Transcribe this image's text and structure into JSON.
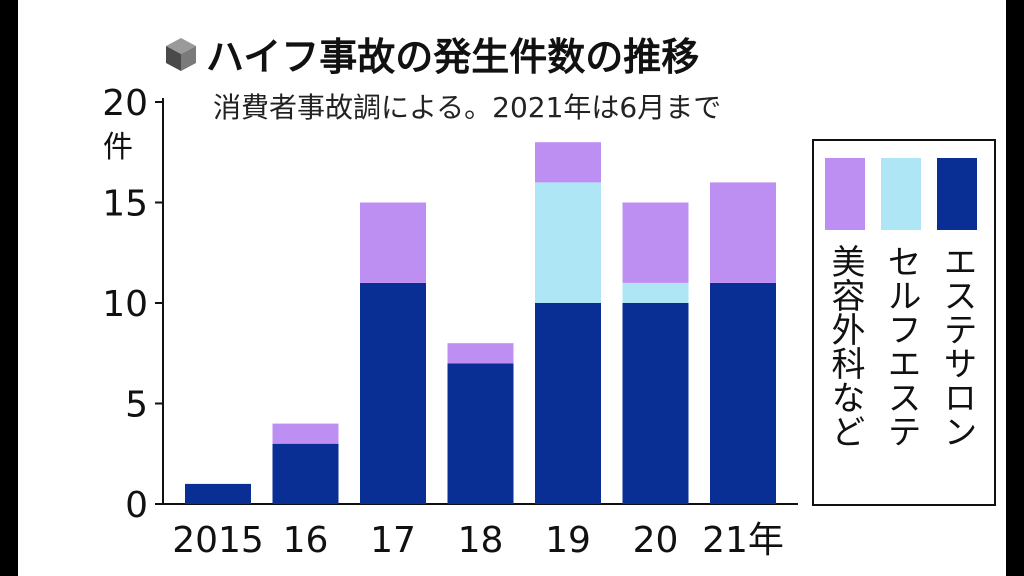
{
  "chart_data": {
    "type": "bar",
    "stacked": true,
    "title": "ハイフ事故の発生件数の推移",
    "subtitle": "消費者事故調による。2021年は6月まで",
    "ylabel": "件",
    "ylim": [
      0,
      20
    ],
    "yticks": [
      "0",
      "5",
      "10",
      "15",
      "20"
    ],
    "categories": [
      "2015",
      "16",
      "17",
      "18",
      "19",
      "20",
      "21年"
    ],
    "series": [
      {
        "name": "エステサロン",
        "color": "#0a2f94",
        "values": [
          1,
          3,
          11,
          7,
          10,
          10,
          11
        ]
      },
      {
        "name": "セルフエステ",
        "color": "#aee6f5",
        "values": [
          0,
          0,
          0,
          0,
          6,
          1,
          0
        ]
      },
      {
        "name": "美容外科など",
        "color": "#bd8ff3",
        "values": [
          0,
          1,
          4,
          1,
          2,
          4,
          5
        ]
      }
    ],
    "legend_position": "right",
    "grid": false
  },
  "colors": {
    "title_icon": "#666666",
    "axis": "#111111"
  },
  "icons": {
    "title": "cube-icon"
  }
}
